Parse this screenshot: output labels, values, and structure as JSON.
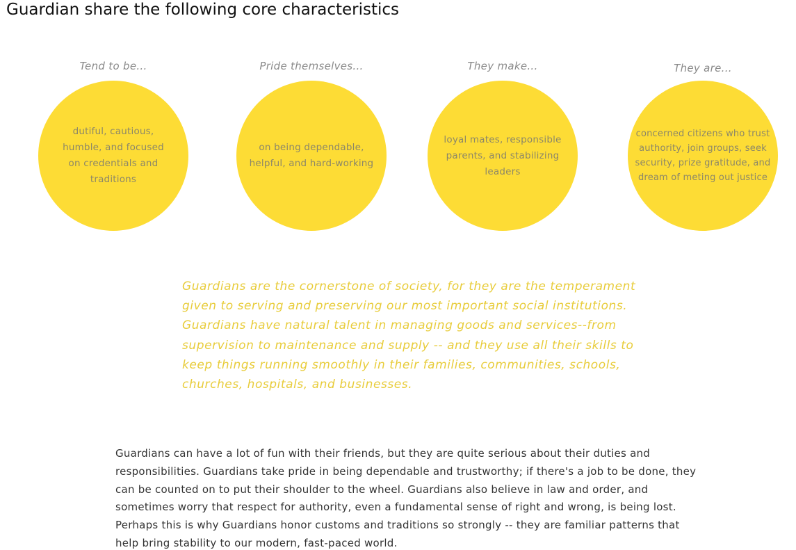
{
  "title": "Guardian share the following core characteristics",
  "traits": [
    {
      "heading": "Tend to be...",
      "text": "dutiful, cautious, humble, and focused on credentials and traditions"
    },
    {
      "heading": "Pride themselves...",
      "text": "on being dependable, helpful, and hard-working"
    },
    {
      "heading": "They make...",
      "text": "loyal mates, responsible parents, and stabilizing leaders"
    },
    {
      "heading": "They are...",
      "text": "concerned citizens who trust authority, join groups, seek security, prize gratitude, and dream of meting out justice"
    }
  ],
  "quote": "Guardians are the cornerstone of society, for they are the temperament given to serving and preserving our most important social institutions. Guardians have natural talent in managing goods and services--from supervision to maintenance and supply -- and they use all their skills to keep things running smoothly in their families, communities, schools, churches, hospitals, and businesses.",
  "body": "Guardians can have a lot of fun with their friends, but they are quite serious about their duties and responsibilities. Guardians take pride in being dependable and trustworthy; if there's a job to be done, they can be counted on to put their shoulder to the wheel. Guardians also believe in law and order, and sometimes worry that respect for authority, even a fundamental sense of right and wrong, is being lost. Perhaps this is why Guardians honor customs and traditions so strongly -- they are familiar patterns that help bring stability to our modern, fast-paced world.",
  "colors": {
    "circle": "#fddc35",
    "quote": "#e8cc3a",
    "heading": "#8a8a8a"
  }
}
